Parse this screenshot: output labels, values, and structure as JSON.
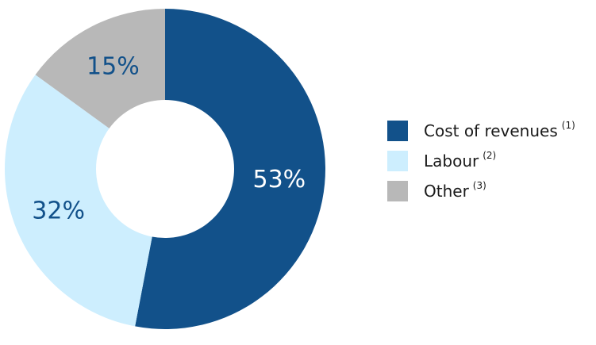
{
  "chart_data": {
    "type": "pie",
    "variant": "donut",
    "categories": [
      "Cost of revenues",
      "Labour",
      "Other"
    ],
    "values": [
      53,
      32,
      15
    ],
    "value_labels": [
      "53%",
      "32%",
      "15%"
    ],
    "notes": [
      "(1)",
      "(2)",
      "(3)"
    ],
    "colors": [
      "#12518a",
      "#cdeefe",
      "#b8b8b8"
    ],
    "label_colors": [
      "#ffffff",
      "#12518a",
      "#12518a"
    ],
    "start": "12 o'clock",
    "direction": "clockwise",
    "legend_position": "right",
    "title": ""
  }
}
